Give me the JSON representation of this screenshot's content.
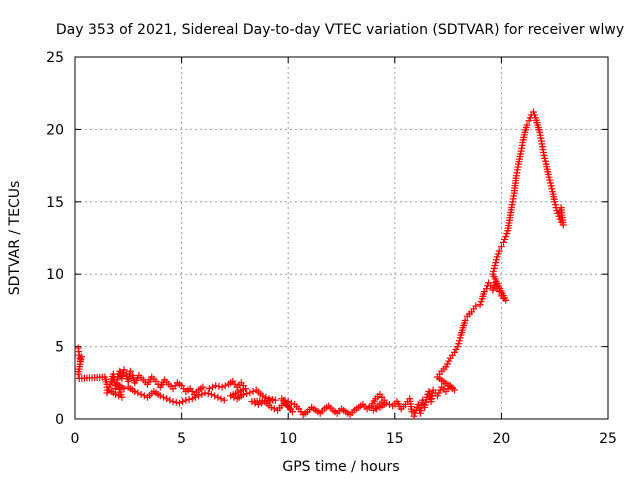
{
  "chart_data": {
    "type": "scatter",
    "title": "Day 353 of 2021, Sidereal Day-to-day VTEC variation (SDTVAR) for receiver wlwy",
    "xlabel": "GPS time / hours",
    "ylabel": "SDTVAR / TECUs",
    "xlim": [
      0,
      25
    ],
    "ylim": [
      0,
      25
    ],
    "xticks": [
      0,
      5,
      10,
      15,
      20,
      25
    ],
    "yticks": [
      0,
      5,
      10,
      15,
      20,
      25
    ],
    "xtick_labels": [
      "0",
      "5",
      "10",
      "15",
      "20",
      "25"
    ],
    "ytick_labels": [
      "0",
      "5",
      "10",
      "15",
      "20",
      "25"
    ],
    "grid": true,
    "marker": "plus",
    "color": "#ff0000",
    "series": [
      {
        "name": "SDTVAR",
        "points": [
          [
            0.15,
            4.9
          ],
          [
            0.2,
            4.4
          ],
          [
            0.25,
            4.0
          ],
          [
            0.3,
            4.3
          ],
          [
            0.15,
            3.1
          ],
          [
            0.2,
            2.8
          ],
          [
            1.4,
            2.9
          ],
          [
            1.5,
            2.4
          ],
          [
            1.5,
            1.8
          ],
          [
            1.6,
            2.2
          ],
          [
            1.7,
            2.6
          ],
          [
            1.8,
            3.1
          ],
          [
            1.9,
            2.1
          ],
          [
            2.0,
            2.9
          ],
          [
            2.1,
            3.3
          ],
          [
            2.2,
            2.8
          ],
          [
            2.3,
            3.4
          ],
          [
            2.4,
            3.1
          ],
          [
            2.5,
            2.6
          ],
          [
            2.6,
            3.3
          ],
          [
            2.7,
            3.0
          ],
          [
            2.8,
            2.5
          ],
          [
            3.0,
            3.0
          ],
          [
            3.2,
            2.7
          ],
          [
            3.4,
            2.4
          ],
          [
            3.6,
            2.9
          ],
          [
            3.8,
            2.6
          ],
          [
            4.0,
            2.2
          ],
          [
            4.2,
            2.7
          ],
          [
            4.4,
            2.4
          ],
          [
            4.6,
            2.1
          ],
          [
            4.8,
            2.5
          ],
          [
            5.0,
            2.3
          ],
          [
            5.2,
            1.9
          ],
          [
            5.4,
            2.1
          ],
          [
            5.6,
            1.7
          ],
          [
            5.8,
            2.0
          ],
          [
            6.0,
            2.2
          ],
          [
            2.5,
            2.2
          ],
          [
            2.8,
            1.9
          ],
          [
            3.1,
            1.7
          ],
          [
            3.4,
            1.5
          ],
          [
            3.7,
            1.9
          ],
          [
            4.0,
            1.6
          ],
          [
            4.3,
            1.4
          ],
          [
            4.6,
            1.2
          ],
          [
            4.9,
            1.1
          ],
          [
            5.2,
            1.3
          ],
          [
            5.5,
            1.4
          ],
          [
            5.8,
            1.6
          ],
          [
            6.1,
            1.8
          ],
          [
            6.4,
            1.7
          ],
          [
            6.7,
            1.5
          ],
          [
            7.0,
            1.3
          ],
          [
            1.6,
            2.0
          ],
          [
            1.9,
            1.7
          ],
          [
            2.2,
            1.5
          ],
          [
            2.0,
            2.4
          ],
          [
            2.3,
            2.1
          ],
          [
            6.3,
            2.1
          ],
          [
            6.6,
            2.3
          ],
          [
            6.9,
            2.2
          ],
          [
            7.2,
            2.4
          ],
          [
            7.4,
            2.6
          ],
          [
            7.6,
            2.2
          ],
          [
            7.8,
            2.5
          ],
          [
            8.0,
            2.1
          ],
          [
            7.3,
            1.6
          ],
          [
            7.6,
            1.4
          ],
          [
            7.9,
            1.7
          ],
          [
            8.2,
            1.8
          ],
          [
            8.5,
            2.0
          ],
          [
            8.8,
            1.6
          ],
          [
            9.1,
            1.4
          ],
          [
            9.4,
            1.3
          ],
          [
            8.3,
            1.2
          ],
          [
            8.6,
            1.0
          ],
          [
            8.9,
            1.2
          ],
          [
            9.2,
            0.8
          ],
          [
            9.5,
            0.6
          ],
          [
            9.8,
            1.1
          ],
          [
            10.0,
            0.9
          ],
          [
            10.2,
            0.5
          ],
          [
            9.7,
            1.4
          ],
          [
            10.0,
            1.2
          ],
          [
            10.3,
            1.0
          ],
          [
            10.5,
            0.7
          ],
          [
            10.7,
            0.3
          ],
          [
            10.9,
            0.5
          ],
          [
            11.1,
            0.8
          ],
          [
            11.3,
            0.6
          ],
          [
            11.5,
            0.4
          ],
          [
            11.7,
            0.7
          ],
          [
            11.9,
            0.9
          ],
          [
            12.1,
            0.6
          ],
          [
            12.3,
            0.4
          ],
          [
            12.5,
            0.7
          ],
          [
            12.7,
            0.5
          ],
          [
            12.9,
            0.3
          ],
          [
            13.1,
            0.6
          ],
          [
            13.3,
            0.8
          ],
          [
            13.5,
            1.0
          ],
          [
            13.7,
            0.7
          ],
          [
            13.9,
            0.9
          ],
          [
            14.1,
            1.4
          ],
          [
            14.3,
            1.7
          ],
          [
            14.5,
            1.3
          ],
          [
            14.0,
            0.6
          ],
          [
            14.3,
            0.8
          ],
          [
            14.6,
            1.1
          ],
          [
            14.9,
            0.9
          ],
          [
            15.1,
            1.2
          ],
          [
            15.3,
            0.7
          ],
          [
            15.5,
            1.0
          ],
          [
            15.7,
            1.4
          ],
          [
            15.8,
            0.5
          ],
          [
            15.9,
            0.2
          ],
          [
            16.0,
            0.6
          ],
          [
            16.1,
            1.0
          ],
          [
            16.2,
            0.4
          ],
          [
            16.3,
            1.3
          ],
          [
            16.4,
            0.8
          ],
          [
            16.5,
            1.5
          ],
          [
            16.6,
            1.9
          ],
          [
            16.7,
            1.2
          ],
          [
            16.8,
            2.0
          ],
          [
            17.0,
            1.6
          ],
          [
            17.2,
            2.2
          ],
          [
            17.4,
            1.9
          ],
          [
            17.6,
            2.3
          ],
          [
            17.8,
            2.0
          ],
          [
            17.0,
            2.9
          ],
          [
            17.2,
            3.3
          ],
          [
            17.4,
            3.6
          ],
          [
            17.6,
            4.2
          ],
          [
            17.8,
            4.6
          ],
          [
            18.0,
            5.2
          ],
          [
            18.1,
            5.8
          ],
          [
            18.2,
            6.3
          ],
          [
            18.3,
            6.8
          ],
          [
            18.4,
            7.1
          ],
          [
            18.6,
            7.4
          ],
          [
            18.8,
            7.8
          ],
          [
            19.0,
            7.9
          ],
          [
            19.1,
            8.3
          ],
          [
            19.2,
            8.8
          ],
          [
            19.3,
            9.0
          ],
          [
            19.4,
            9.4
          ],
          [
            19.5,
            9.2
          ],
          [
            19.6,
            8.9
          ],
          [
            19.7,
            9.4
          ],
          [
            19.8,
            9.0
          ],
          [
            19.9,
            8.8
          ],
          [
            20.0,
            8.5
          ],
          [
            20.2,
            8.2
          ],
          [
            19.6,
            10.0
          ],
          [
            19.7,
            10.6
          ],
          [
            19.8,
            11.2
          ],
          [
            19.9,
            11.6
          ],
          [
            20.0,
            11.9
          ],
          [
            20.1,
            12.2
          ],
          [
            20.2,
            12.6
          ],
          [
            20.3,
            13.0
          ],
          [
            20.4,
            13.9
          ],
          [
            20.5,
            14.8
          ],
          [
            20.6,
            15.6
          ],
          [
            20.7,
            16.8
          ],
          [
            20.8,
            17.6
          ],
          [
            20.9,
            18.3
          ],
          [
            21.0,
            19.1
          ],
          [
            21.1,
            19.8
          ],
          [
            21.2,
            20.3
          ],
          [
            21.3,
            20.6
          ],
          [
            21.4,
            21.0
          ],
          [
            21.5,
            21.2
          ],
          [
            21.6,
            20.8
          ],
          [
            21.7,
            20.3
          ],
          [
            21.8,
            19.8
          ],
          [
            21.9,
            19.0
          ],
          [
            22.0,
            18.2
          ],
          [
            22.1,
            17.6
          ],
          [
            22.2,
            16.9
          ],
          [
            22.3,
            16.3
          ],
          [
            22.4,
            15.7
          ],
          [
            22.5,
            15.0
          ],
          [
            22.6,
            14.4
          ],
          [
            22.7,
            14.0
          ],
          [
            22.8,
            13.6
          ],
          [
            22.9,
            13.4
          ],
          [
            22.8,
            14.6
          ],
          [
            22.7,
            14.2
          ]
        ]
      }
    ]
  }
}
